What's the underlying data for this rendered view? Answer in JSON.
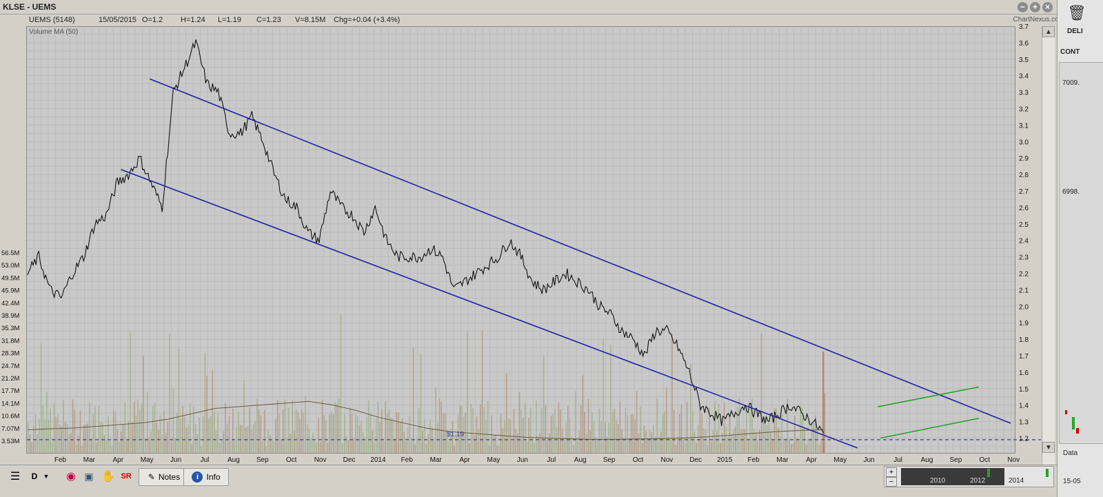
{
  "window": {
    "title": "KLSE - UEMS",
    "brand": "ChartNexus.com"
  },
  "quote": {
    "symbol": "UEMS (5148)",
    "date": "15/05/2015",
    "open": "O=1.2",
    "high": "H=1.24",
    "low": "L=1.19",
    "close": "C=1.23",
    "volume": "V=8.15M",
    "change": "Chg=+0.04 (+3.4%)"
  },
  "indicator_label": "Volume MA (50)",
  "price_label": "$1.19",
  "chart_data": {
    "type": "line",
    "title": "",
    "xlabel": "",
    "ylabel": "",
    "ylim": [
      1.1,
      3.7
    ],
    "x_tick_labels": [
      "Feb",
      "Mar",
      "Apr",
      "May",
      "Jun",
      "Jul",
      "Aug",
      "Sep",
      "Oct",
      "Nov",
      "Dec",
      "2014",
      "Feb",
      "Mar",
      "Apr",
      "May",
      "Jun",
      "Jul",
      "Aug",
      "Sep",
      "Oct",
      "Nov",
      "Dec",
      "2015",
      "Feb",
      "Mar",
      "Apr",
      "May",
      "Jun",
      "Jul",
      "Aug",
      "Sep",
      "Oct",
      "Nov"
    ],
    "y_price_ticks": [
      "3.7",
      "3.6",
      "3.5",
      "3.4",
      "3.3",
      "3.2",
      "3.1",
      "3.0",
      "2.9",
      "2.8",
      "2.7",
      "2.6",
      "2.5",
      "2.4",
      "2.3",
      "2.2",
      "2.1",
      "2.0",
      "1.9",
      "1.8",
      "1.7",
      "1.6",
      "1.5",
      "1.4",
      "1.3",
      "1.2"
    ],
    "y_volume_ticks": [
      "56.5M",
      "53.0M",
      "49.5M",
      "45.9M",
      "42.4M",
      "38.9M",
      "35.3M",
      "31.8M",
      "28.3M",
      "24.7M",
      "21.2M",
      "17.7M",
      "14.1M",
      "10.6M",
      "7.07M",
      "3.53M"
    ],
    "series": [
      {
        "values": [
          2.2,
          2.3,
          2.1,
          2.05,
          2.2,
          2.3,
          2.5,
          2.55,
          2.75,
          2.8,
          2.9,
          2.75,
          2.6,
          3.3,
          3.45,
          3.6,
          3.35,
          3.3,
          3.05,
          3.05,
          3.15,
          3.0,
          2.8,
          2.65,
          2.6,
          2.45,
          2.4,
          2.7,
          2.6,
          2.55,
          2.45,
          2.6,
          2.4,
          2.3,
          2.3,
          2.3,
          2.35,
          2.3,
          2.1,
          2.15,
          2.2,
          2.25,
          2.3,
          2.4,
          2.3,
          2.15,
          2.1,
          2.15,
          2.2,
          2.15,
          2.1,
          2.0,
          1.95,
          1.85,
          1.8,
          1.7,
          1.85,
          1.85,
          1.75,
          1.6,
          1.4,
          1.35,
          1.3,
          1.35,
          1.4,
          1.35,
          1.3,
          1.35,
          1.4,
          1.35,
          1.3,
          1.23
        ]
      },
      {
        "name": "Volume MA (50)",
        "values": [
          6.5,
          6.8,
          7.0,
          7.5,
          8.0,
          8.5,
          9.5,
          11.0,
          12.5,
          13.0,
          13.5,
          14.0,
          14.5,
          13.5,
          12.0,
          10.0,
          8.5,
          7.0,
          6.0,
          5.5,
          5.0,
          4.5,
          4.2,
          4.0,
          3.8,
          3.8,
          3.9,
          4.0,
          4.2,
          4.5,
          5.0,
          5.5,
          6.0,
          6.3,
          6.5
        ]
      }
    ],
    "trend_lines": [
      {
        "color": "#1f1fa8",
        "from": [
          4.1,
          3.38
        ],
        "to": [
          33.9,
          1.29
        ]
      },
      {
        "color": "#1f1fa8",
        "from": [
          3.1,
          2.83
        ],
        "to": [
          28.6,
          1.14
        ]
      },
      {
        "color": "#2aa02a",
        "from": [
          29.3,
          1.39
        ],
        "to": [
          32.8,
          1.51
        ]
      },
      {
        "color": "#2aa02a",
        "from": [
          29.4,
          1.2
        ],
        "to": [
          32.8,
          1.32
        ]
      }
    ],
    "reference_line": {
      "value": 1.19,
      "label": "$1.19"
    },
    "grid": true
  },
  "toolbar": {
    "notes": "Notes",
    "info": "Info",
    "d_label": "D"
  },
  "side_panel": {
    "btn_label": "DELI",
    "header": "CONT",
    "val1": "7009.",
    "val2": "6998.",
    "data": "Data",
    "date": "15-05"
  },
  "nav_years": [
    "2010",
    "2012",
    "2014"
  ],
  "colors": {
    "plot_bg": "#c9c9c9",
    "price": "#111111",
    "channel": "#1f1fa8",
    "green": "#2aa02a",
    "volume_ma": "#6b5a3a",
    "reference": "#3a3aa0"
  }
}
